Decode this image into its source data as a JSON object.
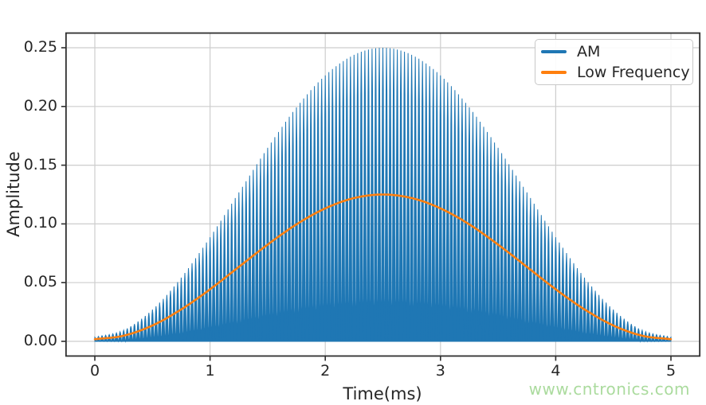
{
  "figure": {
    "background": "#ffffff",
    "watermark": {
      "text": "www.cntronics.com",
      "color": "#abdb9e"
    }
  },
  "chart_data": {
    "type": "line",
    "title": "",
    "xlabel": "Time(ms)",
    "ylabel": "Amplitude",
    "xlim": [
      -0.25,
      5.25
    ],
    "ylim": [
      -0.0125,
      0.2625
    ],
    "grid": true,
    "grid_color": "#cdcdcd",
    "spine_color": "#2f2f2f",
    "text_color": "#262626",
    "xticks": {
      "values": [
        0,
        1,
        2,
        3,
        4,
        5
      ],
      "labels": [
        "0",
        "1",
        "2",
        "3",
        "4",
        "5"
      ]
    },
    "yticks": {
      "values": [
        0,
        0.05,
        0.1,
        0.15,
        0.2,
        0.25
      ],
      "labels": [
        "0.00",
        "0.05",
        "0.10",
        "0.15",
        "0.20",
        "0.25"
      ]
    },
    "legend": {
      "position": "upper right",
      "entries": [
        {
          "label": "AM",
          "color": "#1f77b4"
        },
        {
          "label": "Low Frequency",
          "color": "#ff7f0e"
        }
      ]
    },
    "series": [
      {
        "name": "AM",
        "type": "am_band",
        "color": "#1f77b4",
        "description": "High-frequency carrier amplitude-modulated by the low-frequency signal; oscillates between 0 and the envelope, appearing as a solid filled bell shape.",
        "carrier_cycles": 160,
        "baseline": 0,
        "x": [
          0,
          0.25,
          0.5,
          0.75,
          1.0,
          1.25,
          1.5,
          1.75,
          2.0,
          2.25,
          2.5,
          2.75,
          3.0,
          3.25,
          3.5,
          3.75,
          4.0,
          4.25,
          4.5,
          4.75,
          5.0
        ],
        "envelope": [
          0.0035,
          0.0095,
          0.027,
          0.0543,
          0.0887,
          0.1268,
          0.1648,
          0.1992,
          0.2265,
          0.244,
          0.25,
          0.244,
          0.2265,
          0.1992,
          0.1648,
          0.1268,
          0.0887,
          0.0543,
          0.027,
          0.0095,
          0.0035
        ]
      },
      {
        "name": "Low Frequency",
        "type": "line",
        "color": "#ff7f0e",
        "x": [
          0,
          0.25,
          0.5,
          0.75,
          1.0,
          1.25,
          1.5,
          1.75,
          2.0,
          2.25,
          2.5,
          2.75,
          3.0,
          3.25,
          3.5,
          3.75,
          4.0,
          4.25,
          4.5,
          4.75,
          5.0
        ],
        "y": [
          0.0018,
          0.0048,
          0.0135,
          0.0272,
          0.0443,
          0.0634,
          0.0824,
          0.0996,
          0.1132,
          0.122,
          0.125,
          0.122,
          0.1132,
          0.0996,
          0.0824,
          0.0634,
          0.0443,
          0.0272,
          0.0135,
          0.0048,
          0.0018
        ]
      }
    ]
  }
}
